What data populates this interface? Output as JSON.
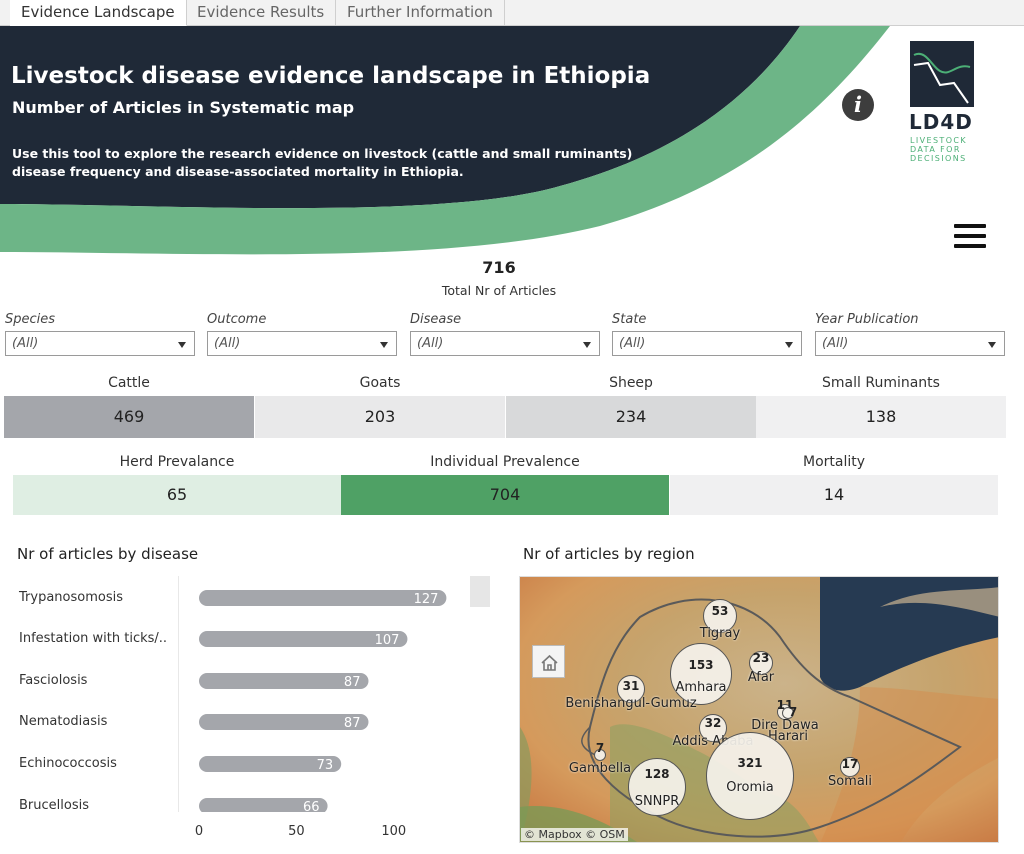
{
  "tabs": [
    "Evidence Landscape",
    "Evidence Results",
    "Further Information"
  ],
  "banner": {
    "title": "Livestock disease evidence landscape in Ethiopia",
    "subtitle": "Number of Articles in Systematic map",
    "description": "Use this tool to explore the research evidence on livestock (cattle and small ruminants) disease frequency and disease-associated mortality in Ethiopia.",
    "info_icon": "info-icon",
    "logo_name": "LD4D",
    "logo_tagline": "LIVESTOCK DATA FOR DECISIONS",
    "menu_icon": "hamburger-menu-icon",
    "colors": {
      "navy": "#1f2937",
      "green": "#6db587"
    }
  },
  "total": {
    "value": "716",
    "label": "Total Nr of Articles"
  },
  "filters": [
    {
      "label": "Species",
      "value": "(All)"
    },
    {
      "label": "Outcome",
      "value": "(All)"
    },
    {
      "label": "Disease",
      "value": "(All)"
    },
    {
      "label": "State",
      "value": "(All)"
    },
    {
      "label": "Year Publication",
      "value": "(All)"
    }
  ],
  "species": [
    {
      "label": "Cattle",
      "value": "469",
      "color": "#a4a6ab"
    },
    {
      "label": "Goats",
      "value": "203",
      "color": "#e9e9ea"
    },
    {
      "label": "Sheep",
      "value": "234",
      "color": "#d8d9da"
    },
    {
      "label": "Small Ruminants",
      "value": "138",
      "color": "#f0f0f1"
    }
  ],
  "outcomes": [
    {
      "label": "Herd Prevalance",
      "value": "65",
      "color": "#dfeee3"
    },
    {
      "label": "Individual Prevalence",
      "value": "704",
      "color": "#4fa165"
    },
    {
      "label": "Mortality",
      "value": "14",
      "color": "#f0f0f1"
    }
  ],
  "disease_title": "Nr of articles by disease",
  "region_title": "Nr of articles by region",
  "chart_data": {
    "type": "bar",
    "orientation": "horizontal",
    "categories": [
      "Trypanosomosis",
      "Infestation with ticks/..",
      "Fasciolosis",
      "Nematodiasis",
      "Echinococcosis",
      "Brucellosis"
    ],
    "values": [
      127,
      107,
      87,
      87,
      73,
      66
    ],
    "xticks": [
      "0",
      "50",
      "100"
    ],
    "xlim": [
      0,
      140
    ],
    "bar_color": "#a4a6ab"
  },
  "map": {
    "regions": [
      {
        "name": "Tigray",
        "value": "53"
      },
      {
        "name": "Amhara",
        "value": "153"
      },
      {
        "name": "Afar",
        "value": "23"
      },
      {
        "name": "Benishangul-Gumuz",
        "value": "31"
      },
      {
        "name": "Dire Dawa",
        "value": "11"
      },
      {
        "name": "Harari",
        "value": "7"
      },
      {
        "name": "Addis Ababa",
        "value": "32"
      },
      {
        "name": "Gambella",
        "value": "7"
      },
      {
        "name": "Oromia",
        "value": "321"
      },
      {
        "name": "SNNPR",
        "value": "128"
      },
      {
        "name": "Somali",
        "value": "17"
      }
    ],
    "home_icon": "home-icon",
    "attribution": "© Mapbox  © OSM"
  }
}
